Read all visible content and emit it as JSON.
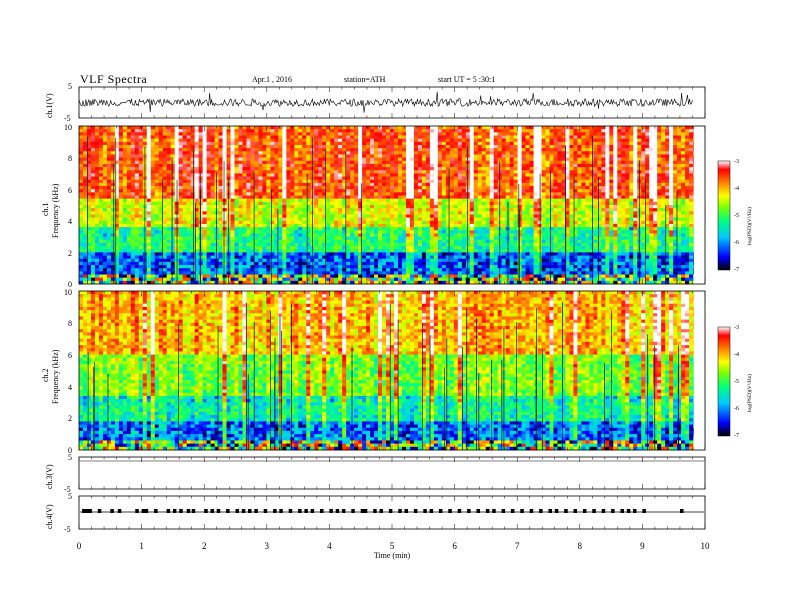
{
  "header": {
    "title": "VLF Spectra",
    "date": "Apr.1 , 2016",
    "station": "station=ATH",
    "start": "start UT = 5 :30:1"
  },
  "colors": {
    "spectrogram_scale": [
      "#000000",
      "#0000ff",
      "#00c8ff",
      "#00ff80",
      "#80ff00",
      "#ffff00",
      "#ff8000",
      "#ff0000",
      "#ffffff"
    ]
  },
  "chart_data": [
    {
      "type": "line",
      "panel": "ch1-waveform",
      "ylabel": "ch.1(V)",
      "ylim": [
        -5,
        5
      ],
      "yticks": [
        "5",
        "-5"
      ],
      "xlim": [
        0,
        10
      ],
      "description": "dense noisy waveform around 0 V, amplitude ~±1.5 V, active until ~9.8 min"
    },
    {
      "type": "heatmap",
      "panel": "ch1-spectrogram",
      "ylabel_channel": "ch.1",
      "ylabel": "Frequency (kHz)",
      "ylim": [
        0,
        10
      ],
      "yticks": [
        "0",
        "2",
        "4",
        "6",
        "8",
        "10"
      ],
      "xlim": [
        0,
        10
      ],
      "colorbar": {
        "label": "log(PSD)(V²/Hz)",
        "range": [
          -7,
          -3
        ],
        "ticks": [
          "-3",
          "-4",
          "-5",
          "-6",
          "-7"
        ]
      },
      "psd_profile_by_frequency": [
        {
          "f_khz": [
            0,
            0.6
          ],
          "level": "mixed"
        },
        {
          "f_khz": [
            0.6,
            2.0
          ],
          "level": -6.3
        },
        {
          "f_khz": [
            2.0,
            3.6
          ],
          "level": -5.5
        },
        {
          "f_khz": [
            3.6,
            5.5
          ],
          "level": -4.7
        },
        {
          "f_khz": [
            5.5,
            10
          ],
          "level": -3.8
        }
      ]
    },
    {
      "type": "heatmap",
      "panel": "ch2-spectrogram",
      "ylabel_channel": "ch.2",
      "ylabel": "Frequency (kHz)",
      "ylim": [
        0,
        10
      ],
      "yticks": [
        "0",
        "2",
        "4",
        "6",
        "8",
        "10"
      ],
      "xlim": [
        0,
        10
      ],
      "colorbar": {
        "label": "log(PSD)(V²/Hz)",
        "range": [
          -7,
          -3
        ],
        "ticks": [
          "-3",
          "-4",
          "-5",
          "-6",
          "-7"
        ]
      },
      "psd_profile_by_frequency": [
        {
          "f_khz": [
            0,
            0.6
          ],
          "level": "mixed"
        },
        {
          "f_khz": [
            0.6,
            1.8
          ],
          "level": -6.2
        },
        {
          "f_khz": [
            1.8,
            3.4
          ],
          "level": -5.6
        },
        {
          "f_khz": [
            3.4,
            6.0
          ],
          "level": -5.0
        },
        {
          "f_khz": [
            6.0,
            10
          ],
          "level": -4.2
        }
      ]
    },
    {
      "type": "line",
      "panel": "ch3-waveform",
      "ylabel": "ch.3(V)",
      "ylim": [
        -5,
        5
      ],
      "yticks": [
        "5",
        "-5"
      ],
      "xlim": [
        0,
        10
      ],
      "description": "near-flat trace at ~+5 V"
    },
    {
      "type": "line",
      "panel": "ch4-waveform",
      "ylabel": "ch.4(V)",
      "ylim": [
        -5,
        5
      ],
      "yticks": [
        "5",
        "-5"
      ],
      "xlim": [
        0,
        10
      ],
      "description": "flat trace at ~0 V with periodic rectangular pulses until ~9 min",
      "pulse_times_min": [
        0.05,
        0.1,
        0.15,
        0.3,
        0.5,
        0.62,
        0.9,
        1.0,
        1.05,
        1.2,
        1.4,
        1.5,
        1.6,
        1.72,
        1.8,
        2.0,
        2.1,
        2.2,
        2.35,
        2.5,
        2.6,
        2.7,
        2.8,
        2.95,
        3.1,
        3.2,
        3.35,
        3.5,
        3.6,
        3.7,
        3.85,
        4.0,
        4.1,
        4.2,
        4.35,
        4.5,
        4.55,
        4.7,
        4.8,
        4.95,
        5.1,
        5.2,
        5.35,
        5.5,
        5.6,
        5.75,
        5.9,
        6.05,
        6.2,
        6.35,
        6.5,
        6.6,
        6.75,
        6.9,
        7.05,
        7.2,
        7.35,
        7.5,
        7.6,
        7.75,
        7.9,
        8.05,
        8.2,
        8.35,
        8.5,
        8.65,
        8.75,
        8.85,
        9.0,
        9.6
      ]
    }
  ],
  "time_axis": {
    "label": "Time (min)",
    "ticks": [
      "0",
      "1",
      "2",
      "3",
      "4",
      "5",
      "6",
      "7",
      "8",
      "9",
      "10"
    ]
  }
}
